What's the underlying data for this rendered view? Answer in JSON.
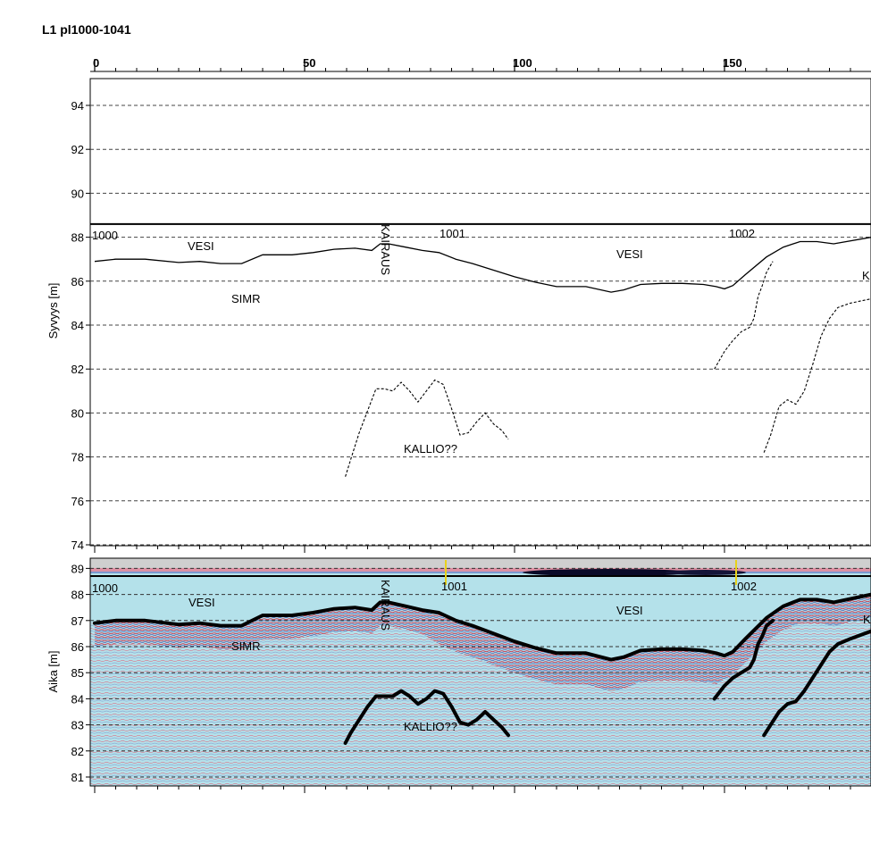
{
  "title": "L1 pl1000-1041",
  "colors": {
    "water": "#b4e1ea",
    "gray_band": "#cfcfcf",
    "reflector_red": "#c8324a",
    "reflector_blue": "#5a7fc0",
    "marker_yellow": "#e8d21a",
    "line": "#000000"
  },
  "chart_data": [
    {
      "type": "line",
      "name": "depth-profile",
      "x_ticks": [
        "0",
        "50",
        "100",
        "150"
      ],
      "xlim": [
        0,
        185
      ],
      "ylabel": "Syvyys [m]",
      "y_ticks": [
        "74",
        "76",
        "78",
        "80",
        "82",
        "84",
        "86",
        "88",
        "90",
        "92",
        "94"
      ],
      "ylim": [
        74,
        95.2
      ],
      "grid": "dashed horizontal",
      "water_surface": 88.6,
      "series": [
        {
          "id": "bottom",
          "style": "solid",
          "points": [
            [
              0,
              86.9
            ],
            [
              5,
              87.0
            ],
            [
              12,
              87.0
            ],
            [
              20,
              86.85
            ],
            [
              25,
              86.9
            ],
            [
              30,
              86.8
            ],
            [
              35,
              86.8
            ],
            [
              40,
              87.2
            ],
            [
              47,
              87.2
            ],
            [
              52,
              87.3
            ],
            [
              57,
              87.45
            ],
            [
              62,
              87.5
            ],
            [
              66,
              87.4
            ],
            [
              68,
              87.7
            ],
            [
              70,
              87.7
            ],
            [
              74,
              87.55
            ],
            [
              78,
              87.4
            ],
            [
              82,
              87.3
            ],
            [
              86,
              87.0
            ],
            [
              90,
              86.8
            ],
            [
              95,
              86.5
            ],
            [
              100,
              86.2
            ],
            [
              105,
              85.95
            ],
            [
              110,
              85.75
            ],
            [
              117,
              85.75
            ],
            [
              123,
              85.5
            ],
            [
              126,
              85.6
            ],
            [
              130,
              85.85
            ],
            [
              135,
              85.9
            ],
            [
              140,
              85.9
            ],
            [
              145,
              85.85
            ],
            [
              148,
              85.75
            ],
            [
              150,
              85.65
            ],
            [
              152,
              85.8
            ],
            [
              155,
              86.3
            ],
            [
              160,
              87.1
            ],
            [
              164,
              87.55
            ],
            [
              168,
              87.8
            ],
            [
              172,
              87.8
            ],
            [
              176,
              87.7
            ],
            [
              185,
              88.0
            ]
          ]
        },
        {
          "id": "kallio-left",
          "style": "dashed",
          "points": [
            [
              59.7,
              77.1
            ],
            [
              61,
              77.9
            ],
            [
              63,
              79.1
            ],
            [
              65,
              80.1
            ],
            [
              67,
              81.1
            ],
            [
              69,
              81.1
            ],
            [
              71,
              81.0
            ],
            [
              73,
              81.4
            ],
            [
              75,
              81.0
            ],
            [
              77,
              80.5
            ],
            [
              79,
              81.0
            ],
            [
              81,
              81.5
            ],
            [
              83,
              81.3
            ],
            [
              85,
              80.2
            ],
            [
              87,
              79.0
            ],
            [
              89,
              79.1
            ],
            [
              91,
              79.6
            ],
            [
              93,
              80.0
            ],
            [
              95,
              79.5
            ],
            [
              97,
              79.2
            ],
            [
              98.5,
              78.8
            ]
          ]
        },
        {
          "id": "right-a",
          "style": "dashed",
          "points": [
            [
              147.6,
              82.0
            ],
            [
              150,
              82.8
            ],
            [
              152,
              83.3
            ],
            [
              154,
              83.7
            ],
            [
              156,
              83.9
            ],
            [
              157,
              84.3
            ],
            [
              158,
              85.3
            ],
            [
              159,
              85.8
            ],
            [
              160,
              86.4
            ],
            [
              161.5,
              86.9
            ]
          ]
        },
        {
          "id": "right-b",
          "style": "dashed",
          "points": [
            [
              159.4,
              78.2
            ],
            [
              161,
              79.0
            ],
            [
              163,
              80.3
            ],
            [
              165,
              80.6
            ],
            [
              167,
              80.4
            ],
            [
              169,
              81.0
            ],
            [
              171,
              82.2
            ],
            [
              173,
              83.5
            ],
            [
              175,
              84.3
            ],
            [
              177,
              84.8
            ],
            [
              180,
              85.0
            ],
            [
              185,
              85.2
            ]
          ]
        }
      ],
      "annotations": [
        "1000",
        "VESI",
        "SIMR",
        "KAIRAUS",
        "1001",
        "VESI",
        "1002",
        "KALLIO??",
        "K"
      ]
    },
    {
      "type": "line",
      "name": "radar-profile",
      "ylabel": "Aika [m]",
      "y_ticks": [
        "81",
        "82",
        "83",
        "84",
        "85",
        "86",
        "87",
        "88",
        "89"
      ],
      "ylim": [
        80.7,
        89.4
      ],
      "grid": "dashed horizontal",
      "background": "radargram",
      "markers": [
        "1001",
        "1002"
      ],
      "series": [
        {
          "id": "bottom",
          "style": "thick",
          "points": [
            [
              0,
              86.9
            ],
            [
              5,
              87.0
            ],
            [
              12,
              87.0
            ],
            [
              20,
              86.85
            ],
            [
              25,
              86.9
            ],
            [
              30,
              86.8
            ],
            [
              35,
              86.8
            ],
            [
              40,
              87.2
            ],
            [
              47,
              87.2
            ],
            [
              52,
              87.3
            ],
            [
              57,
              87.45
            ],
            [
              62,
              87.5
            ],
            [
              66,
              87.4
            ],
            [
              68,
              87.7
            ],
            [
              70,
              87.7
            ],
            [
              74,
              87.55
            ],
            [
              78,
              87.4
            ],
            [
              82,
              87.3
            ],
            [
              86,
              87.0
            ],
            [
              90,
              86.8
            ],
            [
              95,
              86.5
            ],
            [
              100,
              86.2
            ],
            [
              105,
              85.95
            ],
            [
              110,
              85.75
            ],
            [
              117,
              85.75
            ],
            [
              123,
              85.5
            ],
            [
              126,
              85.6
            ],
            [
              130,
              85.85
            ],
            [
              135,
              85.9
            ],
            [
              140,
              85.9
            ],
            [
              145,
              85.85
            ],
            [
              148,
              85.75
            ],
            [
              150,
              85.65
            ],
            [
              152,
              85.8
            ],
            [
              155,
              86.3
            ],
            [
              160,
              87.1
            ],
            [
              164,
              87.55
            ],
            [
              168,
              87.8
            ],
            [
              172,
              87.8
            ],
            [
              176,
              87.7
            ],
            [
              185,
              88.0
            ]
          ]
        },
        {
          "id": "kallio-left",
          "style": "thick",
          "points": [
            [
              59.7,
              82.3
            ],
            [
              61,
              82.7
            ],
            [
              63,
              83.2
            ],
            [
              65,
              83.7
            ],
            [
              67,
              84.1
            ],
            [
              69,
              84.1
            ],
            [
              71,
              84.1
            ],
            [
              73,
              84.3
            ],
            [
              75,
              84.1
            ],
            [
              77,
              83.8
            ],
            [
              79,
              84.0
            ],
            [
              81,
              84.3
            ],
            [
              83,
              84.2
            ],
            [
              85,
              83.7
            ],
            [
              87,
              83.1
            ],
            [
              89,
              83.0
            ],
            [
              91,
              83.2
            ],
            [
              93,
              83.5
            ],
            [
              95,
              83.2
            ],
            [
              97,
              82.9
            ],
            [
              98.5,
              82.6
            ]
          ]
        },
        {
          "id": "right-a",
          "style": "thick",
          "points": [
            [
              147.6,
              84.0
            ],
            [
              150,
              84.5
            ],
            [
              152,
              84.8
            ],
            [
              154,
              85.0
            ],
            [
              156,
              85.2
            ],
            [
              157,
              85.5
            ],
            [
              158,
              86.1
            ],
            [
              159,
              86.4
            ],
            [
              160,
              86.8
            ],
            [
              161.5,
              87.0
            ]
          ]
        },
        {
          "id": "right-b",
          "style": "thick",
          "points": [
            [
              159.4,
              82.6
            ],
            [
              161,
              83.0
            ],
            [
              163,
              83.5
            ],
            [
              165,
              83.8
            ],
            [
              167,
              83.9
            ],
            [
              169,
              84.3
            ],
            [
              171,
              84.8
            ],
            [
              173,
              85.3
            ],
            [
              175,
              85.8
            ],
            [
              177,
              86.1
            ],
            [
              180,
              86.3
            ],
            [
              185,
              86.6
            ]
          ]
        }
      ],
      "annotations": [
        "1000",
        "VESI",
        "SIMR",
        "KAIRAUS",
        "1001",
        "VESI",
        "1002",
        "KALLIO??",
        "K"
      ]
    }
  ]
}
